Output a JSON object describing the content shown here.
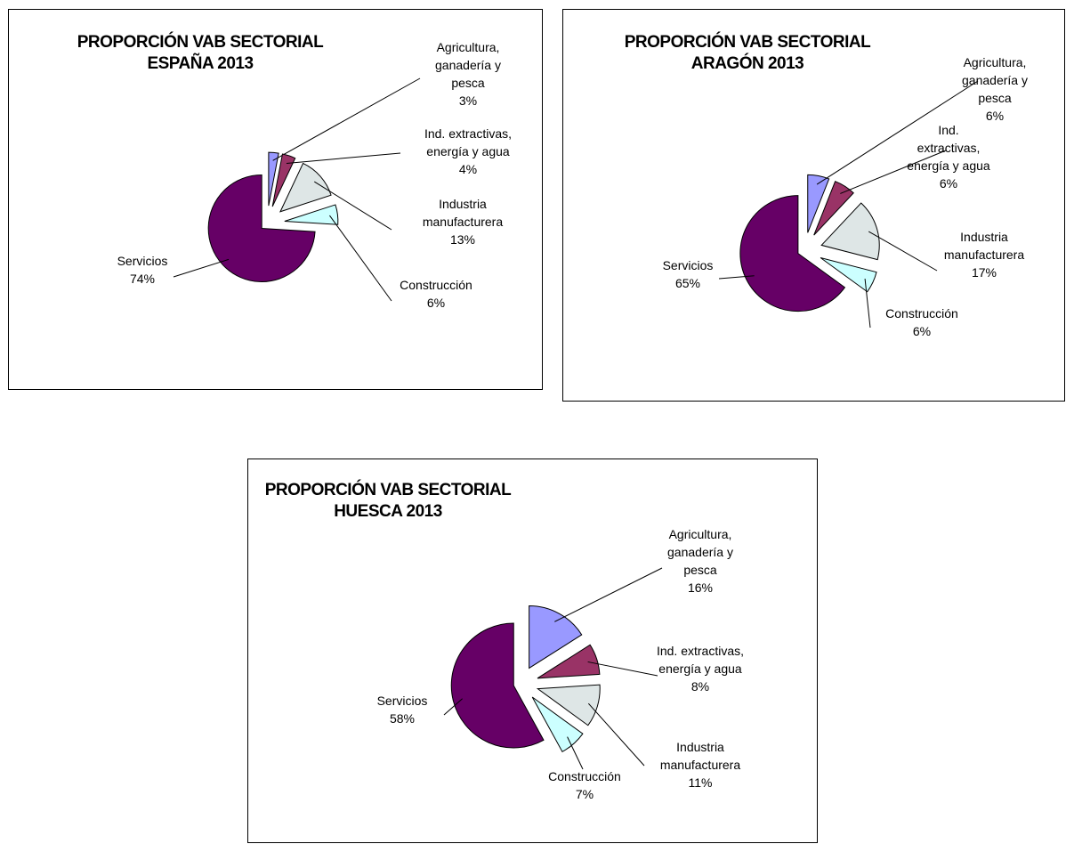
{
  "colors": {
    "agricultura": "#9999ff",
    "extractivas": "#993366",
    "manufacturera": "#dee6e6",
    "construccion": "#ccffff",
    "servicios": "#660066",
    "stroke": "#000000",
    "leader": "#000000"
  },
  "chart_data": [
    {
      "type": "pie",
      "title": [
        "PROPORCIÓN VAB SECTORIAL",
        "ESPAÑA 2013"
      ],
      "slices": [
        {
          "label": [
            "Agricultura,",
            "ganadería y",
            "pesca",
            "3%"
          ],
          "value": 3,
          "color_key": "agricultura"
        },
        {
          "label": [
            "Ind. extractivas,",
            "energía y agua",
            "4%"
          ],
          "value": 4,
          "color_key": "extractivas"
        },
        {
          "label": [
            "Industria",
            "manufacturera",
            "13%"
          ],
          "value": 13,
          "color_key": "manufacturera"
        },
        {
          "label": [
            "Construcción",
            "6%"
          ],
          "value": 6,
          "color_key": "construccion"
        },
        {
          "label": [
            "Servicios",
            "74%"
          ],
          "value": 74,
          "color_key": "servicios"
        }
      ]
    },
    {
      "type": "pie",
      "title": [
        "PROPORCIÓN VAB SECTORIAL",
        "ARAGÓN 2013"
      ],
      "slices": [
        {
          "label": [
            "Agricultura,",
            "ganadería y",
            "pesca",
            "6%"
          ],
          "value": 6,
          "color_key": "agricultura"
        },
        {
          "label": [
            "Ind.",
            "extractivas,",
            "energía y agua",
            "6%"
          ],
          "value": 6,
          "color_key": "extractivas"
        },
        {
          "label": [
            "Industria",
            "manufacturera",
            "17%"
          ],
          "value": 17,
          "color_key": "manufacturera"
        },
        {
          "label": [
            "Construcción",
            "6%"
          ],
          "value": 6,
          "color_key": "construccion"
        },
        {
          "label": [
            "Servicios",
            "65%"
          ],
          "value": 65,
          "color_key": "servicios"
        }
      ]
    },
    {
      "type": "pie",
      "title": [
        "PROPORCIÓN VAB SECTORIAL",
        "HUESCA 2013"
      ],
      "slices": [
        {
          "label": [
            "Agricultura,",
            "ganadería y",
            "pesca",
            "16%"
          ],
          "value": 16,
          "color_key": "agricultura"
        },
        {
          "label": [
            "Ind. extractivas,",
            "energía y agua",
            "8%"
          ],
          "value": 8,
          "color_key": "extractivas"
        },
        {
          "label": [
            "Industria",
            "manufacturera",
            "11%"
          ],
          "value": 11,
          "color_key": "manufacturera"
        },
        {
          "label": [
            "Construcción",
            "7%"
          ],
          "value": 7,
          "color_key": "construccion"
        },
        {
          "label": [
            "Servicios",
            "58%"
          ],
          "value": 58,
          "color_key": "servicios"
        }
      ]
    }
  ]
}
